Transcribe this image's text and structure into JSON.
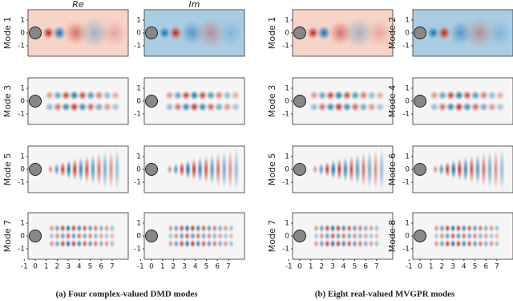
{
  "groups": [
    {
      "caption": "(a)  Four complex-valued DMD modes",
      "columns": [
        {
          "header": "Re",
          "modes": [
            "Mode 1",
            "Mode 3",
            "Mode 5",
            "Mode 7"
          ]
        },
        {
          "header": "Im"
        }
      ]
    },
    {
      "caption": "(b)  Eight real-valued MVGPR modes",
      "columns": [
        {
          "modes": [
            "Mode 1",
            "Mode 3",
            "Mode 5",
            "Mode 7"
          ]
        },
        {
          "modes": [
            "Mode 2",
            "Mode 4",
            "Mode 6",
            "Mode 8"
          ]
        }
      ]
    }
  ],
  "yticks": [
    "1",
    "0",
    "-1"
  ],
  "xticks": [
    "-1",
    "0",
    "1",
    "2",
    "3",
    "4",
    "5",
    "6",
    "7"
  ]
}
